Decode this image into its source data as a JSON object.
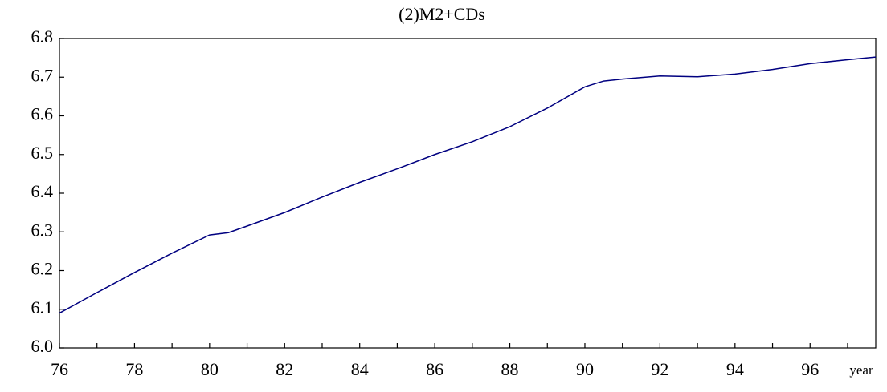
{
  "chart_data": {
    "type": "line",
    "title": "(2)M2+CDs",
    "x_label": "year",
    "x": [
      76,
      77,
      78,
      79,
      80,
      80.5,
      81,
      82,
      83,
      84,
      85,
      86,
      87,
      88,
      89,
      90,
      90.5,
      91,
      92,
      93,
      94,
      95,
      96,
      97,
      97.75
    ],
    "series": [
      {
        "name": "M2+CDs",
        "color": "#000080",
        "values": [
          6.09,
          6.143,
          6.195,
          6.245,
          6.292,
          6.298,
          6.315,
          6.35,
          6.39,
          6.428,
          6.463,
          6.5,
          6.533,
          6.572,
          6.62,
          6.675,
          6.69,
          6.695,
          6.703,
          6.701,
          6.708,
          6.72,
          6.735,
          6.745,
          6.752
        ]
      }
    ],
    "xlim": [
      76,
      97.75
    ],
    "xticks": [
      76,
      78,
      80,
      82,
      84,
      86,
      88,
      90,
      92,
      94,
      96
    ],
    "xminor": [
      77,
      79,
      81,
      83,
      85,
      87,
      89,
      91,
      93,
      95,
      97
    ],
    "ylim": [
      6.0,
      6.8
    ],
    "yticks": [
      {
        "value": 6.0,
        "label": "6.0"
      },
      6.1,
      6.2,
      6.3,
      6.4,
      6.5,
      6.6,
      6.7,
      6.8
    ],
    "grid": false
  }
}
